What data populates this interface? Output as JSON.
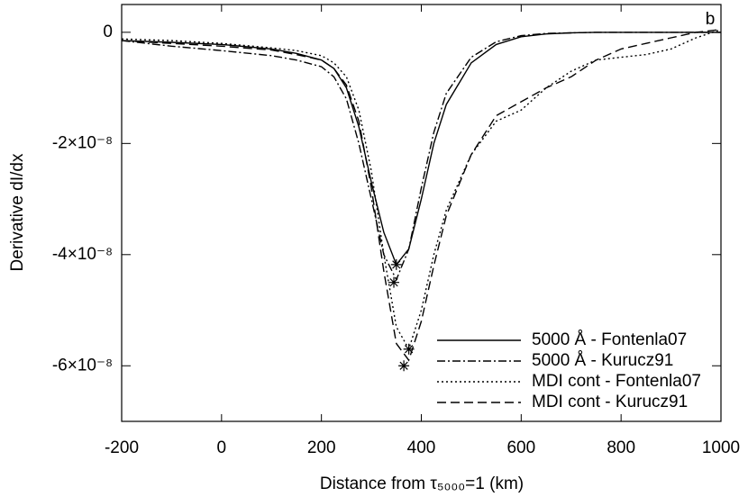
{
  "chart_data": {
    "type": "line",
    "xlabel": "Distance from τ₅₀₀₀=1 (km)",
    "ylabel": "Derivative dI/dx",
    "annotation": "b",
    "xlim": [
      -200,
      1000
    ],
    "ylim": [
      -7e-08,
      5e-09
    ],
    "xticks": [
      -200,
      0,
      200,
      400,
      600,
      800,
      1000
    ],
    "yticks": [
      0,
      {
        "value": -2e-08,
        "label": "-2×10⁻⁸"
      },
      {
        "value": -4e-08,
        "label": "-4×10⁻⁸"
      },
      {
        "value": -6e-08,
        "label": "-6×10⁻⁸"
      }
    ],
    "legend": "lower right",
    "x": [
      -200,
      -100,
      0,
      100,
      150,
      200,
      225,
      250,
      275,
      300,
      325,
      350,
      375,
      400,
      425,
      450,
      500,
      550,
      600,
      650,
      700,
      750,
      800,
      850,
      900,
      950,
      1000
    ],
    "series": [
      {
        "name": "5000 Å - Fontenla07",
        "color": "#000000",
        "dash": "none",
        "values": [
          -1.5e-09,
          -1.8e-09,
          -2.2e-09,
          -3e-09,
          -3.8e-09,
          -5e-09,
          -6.5e-09,
          -1e-08,
          -1.7e-08,
          -2.7e-08,
          -3.6e-08,
          -4.18e-08,
          -3.9e-08,
          -3e-08,
          -2e-08,
          -1.3e-08,
          -5.5e-09,
          -2.2e-09,
          -8e-10,
          -3e-10,
          -1e-10,
          0,
          0,
          0,
          0,
          0,
          0
        ]
      },
      {
        "name": "5000 Å - Kurucz91",
        "color": "#000000",
        "dash": "9,3,2,3",
        "values": [
          -1.5e-09,
          -2.5e-09,
          -3.3e-09,
          -4.2e-09,
          -5e-09,
          -6.2e-09,
          -8e-09,
          -1.2e-08,
          -2e-08,
          -3e-08,
          -4e-08,
          -4.45e-08,
          -3.9e-08,
          -2.8e-08,
          -1.8e-08,
          -1.1e-08,
          -4.5e-09,
          -1.7e-09,
          -6e-10,
          -2e-10,
          -1e-10,
          0,
          0,
          0,
          0,
          0,
          0
        ]
      },
      {
        "name": "MDI cont - Fontenla07",
        "color": "#000000",
        "dash": "2,3",
        "values": [
          -1.2e-09,
          -1.5e-09,
          -2e-09,
          -2.8e-09,
          -3.3e-09,
          -4.2e-09,
          -5.5e-09,
          -8e-09,
          -1.4e-08,
          -2.5e-08,
          -4e-08,
          -5.3e-08,
          -5.7e-08,
          -5e-08,
          -4e-08,
          -3.2e-08,
          -2.2e-08,
          -1.6e-08,
          -1.4e-08,
          -1e-08,
          -7e-09,
          -5e-09,
          -4.5e-09,
          -4e-09,
          -3e-09,
          -1e-09,
          5e-10
        ]
      },
      {
        "name": "MDI cont - Kurucz91",
        "color": "#000000",
        "dash": "10,5",
        "values": [
          -1.5e-09,
          -2e-09,
          -2.5e-09,
          -3.2e-09,
          -4e-09,
          -5e-09,
          -6.5e-09,
          -9.5e-09,
          -1.6e-08,
          -2.8e-08,
          -4.3e-08,
          -5.6e-08,
          -5.9e-08,
          -5.2e-08,
          -4.2e-08,
          -3.3e-08,
          -2.2e-08,
          -1.5e-08,
          -1.25e-08,
          -1e-08,
          -8e-09,
          -5e-09,
          -3e-09,
          -2e-09,
          -1e-09,
          0,
          5e-10
        ]
      }
    ],
    "markers": {
      "x": [
        350,
        345,
        375,
        365
      ],
      "y": [
        -4.18e-08,
        -4.5e-08,
        -5.7e-08,
        -6e-08
      ]
    }
  }
}
